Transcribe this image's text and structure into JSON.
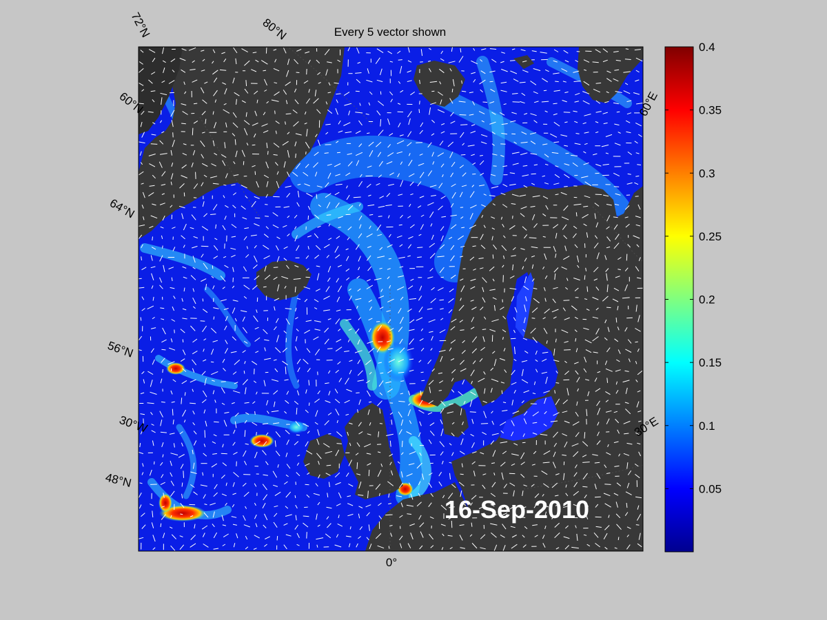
{
  "title": "Every 5 vector shown",
  "date_stamp": "16-Sep-2010",
  "colors": {
    "background": "#c6c6c6",
    "land": "#383838",
    "ocean_base": "#0a1ee6",
    "vector": "#ffffff"
  },
  "lat_labels": [
    {
      "text": "72°N"
    },
    {
      "text": "80°N"
    },
    {
      "text": "60°N"
    },
    {
      "text": "64°N"
    },
    {
      "text": "56°N"
    },
    {
      "text": "30°W"
    },
    {
      "text": "48°N"
    }
  ],
  "lon_labels": [
    {
      "text": "60°E"
    },
    {
      "text": "30°E"
    },
    {
      "text": "0°"
    }
  ],
  "colorbar": {
    "min": 0,
    "max": 0.4,
    "colormap": "jet",
    "ticks": [
      {
        "value": 0.4,
        "label": "0.4"
      },
      {
        "value": 0.35,
        "label": "0.35"
      },
      {
        "value": 0.3,
        "label": "0.3"
      },
      {
        "value": 0.25,
        "label": "0.25"
      },
      {
        "value": 0.2,
        "label": "0.2"
      },
      {
        "value": 0.15,
        "label": "0.15"
      },
      {
        "value": 0.1,
        "label": "0.1"
      },
      {
        "value": 0.05,
        "label": "0.05"
      }
    ]
  }
}
